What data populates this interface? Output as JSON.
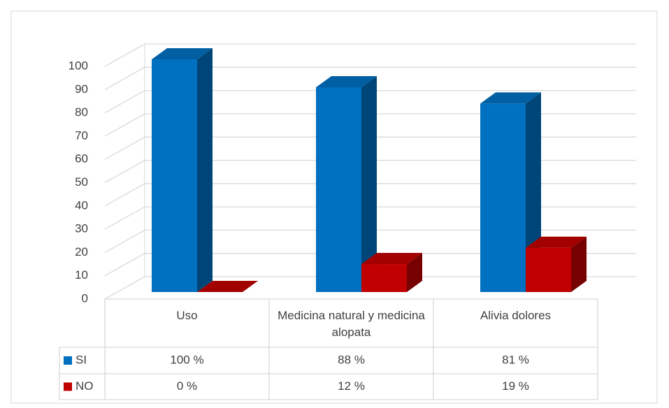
{
  "chart_data": {
    "type": "bar3d",
    "categories": [
      "Uso",
      "Medicina natural y medicina alopata",
      "Alivia dolores"
    ],
    "series": [
      {
        "name": "SI",
        "color": "#0070c0",
        "values": [
          100,
          88,
          81
        ],
        "value_labels": [
          "100 %",
          "88 %",
          "81 %"
        ]
      },
      {
        "name": "NO",
        "color": "#c00000",
        "values": [
          0,
          12,
          19
        ],
        "value_labels": [
          "0 %",
          "12 %",
          "19 %"
        ]
      }
    ],
    "ylim": [
      0,
      100
    ],
    "yticks": [
      0,
      10,
      20,
      30,
      40,
      50,
      60,
      70,
      80,
      90,
      100
    ],
    "grid": true,
    "data_table": true
  }
}
